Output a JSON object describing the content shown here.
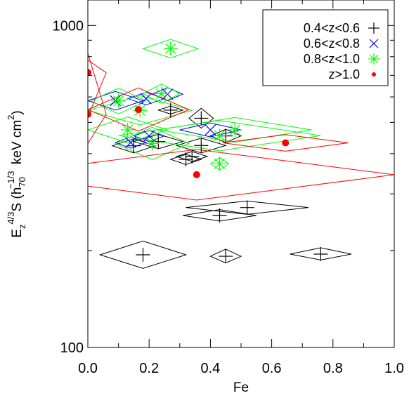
{
  "chart_data": {
    "type": "scatter",
    "x_scale": "linear",
    "y_scale": "log",
    "xlim": [
      0.0,
      1.0
    ],
    "ylim": [
      100,
      1200
    ],
    "x_ticks": [
      {
        "value": 0.0,
        "label": "0.0"
      },
      {
        "value": 0.2,
        "label": "0.2"
      },
      {
        "value": 0.4,
        "label": "0.4"
      },
      {
        "value": 0.6,
        "label": "0.6"
      },
      {
        "value": 0.8,
        "label": "0.8"
      },
      {
        "value": 1.0,
        "label": "1.0"
      }
    ],
    "y_ticks": [
      {
        "value": 100,
        "label": "100"
      },
      {
        "value": 1000,
        "label": "1000"
      }
    ],
    "xlabel": "Fe",
    "ylabel": {
      "base": "E",
      "sub_z": "z",
      "exp_43": "4/3",
      "S": "S (h",
      "sub_70": "70",
      "exp_m13": "−1/3",
      "units": "keV cm",
      "exp_2": "2",
      "close": ")"
    },
    "legend_position": "top-right",
    "series": [
      {
        "name": "0.4<z<0.6",
        "color": "#000000",
        "marker": "plus",
        "points": [
          {
            "x": 0.18,
            "y": 194,
            "dx": 0.14,
            "dy_lo": 176,
            "dy_hi": 214
          },
          {
            "x": 0.45,
            "y": 192,
            "dx": 0.05,
            "dy_lo": 183,
            "dy_hi": 202
          },
          {
            "x": 0.76,
            "y": 195,
            "dx": 0.1,
            "dy_lo": 187,
            "dy_hi": 204
          },
          {
            "x": 0.43,
            "y": 257,
            "dx": 0.12,
            "dy_lo": 247,
            "dy_hi": 268
          },
          {
            "x": 0.52,
            "y": 272,
            "dx": 0.2,
            "dy_lo": 259,
            "dy_hi": 285
          },
          {
            "x": 0.32,
            "y": 384,
            "dx": 0.05,
            "dy_lo": 370,
            "dy_hi": 398
          },
          {
            "x": 0.34,
            "y": 392,
            "dx": 0.05,
            "dy_lo": 378,
            "dy_hi": 406
          },
          {
            "x": 0.45,
            "y": 454,
            "dx": 0.05,
            "dy_lo": 433,
            "dy_hi": 476
          },
          {
            "x": 0.37,
            "y": 424,
            "dx": 0.08,
            "dy_lo": 402,
            "dy_hi": 447
          },
          {
            "x": 0.15,
            "y": 423,
            "dx": 0.07,
            "dy_lo": 402,
            "dy_hi": 445
          },
          {
            "x": 0.23,
            "y": 436,
            "dx": 0.08,
            "dy_lo": 414,
            "dy_hi": 459
          },
          {
            "x": 0.27,
            "y": 546,
            "dx": 0.04,
            "dy_lo": 531,
            "dy_hi": 562
          },
          {
            "x": 0.37,
            "y": 515,
            "dx": 0.04,
            "dy_lo": 480,
            "dy_hi": 553
          }
        ]
      },
      {
        "name": "0.6<z<0.8",
        "color": "#0000ff",
        "marker": "cross",
        "points": [
          {
            "x": 0.09,
            "y": 584,
            "dx": 0.09,
            "dy_lo": 546,
            "dy_hi": 624
          },
          {
            "x": 0.19,
            "y": 593,
            "dx": 0.06,
            "dy_lo": 567,
            "dy_hi": 620
          },
          {
            "x": 0.26,
            "y": 612,
            "dx": 0.05,
            "dy_lo": 584,
            "dy_hi": 641
          },
          {
            "x": 0.2,
            "y": 454,
            "dx": 0.05,
            "dy_lo": 436,
            "dy_hi": 472
          },
          {
            "x": 0.14,
            "y": 433,
            "dx": 0.05,
            "dy_lo": 416,
            "dy_hi": 451
          },
          {
            "x": 0.4,
            "y": 474,
            "dx": 0.1,
            "dy_lo": 451,
            "dy_hi": 498
          }
        ]
      },
      {
        "name": "0.8<z<1.0",
        "color": "#00ff00",
        "marker": "asterisk",
        "points": [
          {
            "x": 0.27,
            "y": 847,
            "dx": 0.09,
            "dy_lo": 793,
            "dy_hi": 905
          },
          {
            "x": 0.24,
            "y": 614,
            "dx": 0.06,
            "dy_lo": 573,
            "dy_hi": 658
          },
          {
            "x": 0.1,
            "y": 583,
            "dx": 0.09,
            "dy_lo": 531,
            "dy_hi": 639
          },
          {
            "x": 0.13,
            "y": 474,
            "dx": 0.13,
            "dy_lo": 432,
            "dy_hi": 520
          },
          {
            "x": 0.43,
            "y": 372,
            "dx": 0.03,
            "dy_lo": 356,
            "dy_hi": 389
          },
          {
            "x": 0.43,
            "y": 455,
            "dx": 0.33,
            "dy_lo": 408,
            "dy_hi": 507
          },
          {
            "x": 0.48,
            "y": 474,
            "dx": 0.25,
            "dy_lo": 434,
            "dy_hi": 518
          },
          {
            "x": 0.17,
            "y": 545,
            "dx": 0.17,
            "dy_lo": 491,
            "dy_hi": 605
          },
          {
            "x": 0.21,
            "y": 430,
            "dx": 0.12,
            "dy_lo": 383,
            "dy_hi": 483
          }
        ]
      },
      {
        "name": "z>1.0",
        "color": "#ff0000",
        "marker": "dot",
        "points": [
          {
            "x": 0.0,
            "y": 714,
            "dx": 0.06,
            "dy_lo": 520,
            "dy_hi": 780
          },
          {
            "x": 0.165,
            "y": 548,
            "dx": 0.165,
            "dy_lo": 470,
            "dy_hi": 640
          },
          {
            "x": 0.355,
            "y": 344,
            "dx": 0.645,
            "dy_lo": 287,
            "dy_hi": 412
          },
          {
            "x": 0.645,
            "y": 432,
            "dx": 0.205,
            "dy_lo": 407,
            "dy_hi": 458
          },
          {
            "x": 0.0,
            "y": 530,
            "dx": 0.06,
            "dy_lo": 430,
            "dy_hi": 820
          }
        ]
      }
    ]
  }
}
